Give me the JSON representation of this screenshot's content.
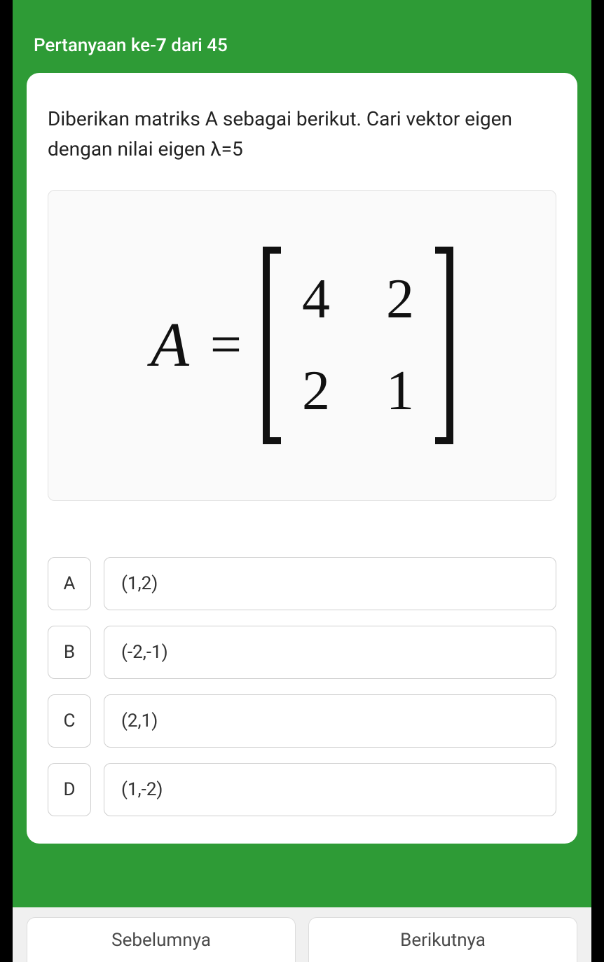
{
  "colors": {
    "primary_green": "#2e9b36",
    "card_bg": "#ffffff",
    "text_dark": "#222222",
    "border_gray": "#cfcfcf",
    "matrix_box_bg": "#fafafa",
    "matrix_box_border": "#e2e2e2",
    "footer_bg": "#f0f0f0"
  },
  "header": {
    "prefix": "Pertanyaan ke-",
    "current": "7",
    "separator": " dari ",
    "total": "45"
  },
  "question": {
    "text": "Diberikan matriks A sebagai berikut. Cari vektor eigen dengan nilai eigen λ=5"
  },
  "matrix": {
    "label": "A",
    "equals": "=",
    "rows": [
      [
        "4",
        "2"
      ],
      [
        "2",
        "1"
      ]
    ]
  },
  "options": [
    {
      "letter": "A",
      "value": "(1,2)"
    },
    {
      "letter": "B",
      "value": "(-2,-1)"
    },
    {
      "letter": "C",
      "value": "(2,1)"
    },
    {
      "letter": "D",
      "value": "(1,-2)"
    }
  ],
  "footer": {
    "prev": "Sebelumnya",
    "next": "Berikutnya"
  }
}
